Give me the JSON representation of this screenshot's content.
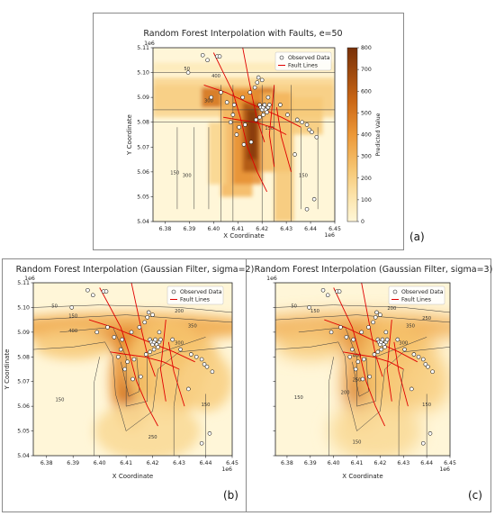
{
  "figure": {
    "panels": [
      {
        "id": "a",
        "letter": "(a)"
      },
      {
        "id": "b",
        "letter": "(b)"
      },
      {
        "id": "c",
        "letter": "(c)"
      }
    ]
  },
  "chart_data": [
    {
      "type": "heatmap",
      "title": "Random Forest Interpolation with Faults, e=50",
      "xlabel": "X Coordinate",
      "ylabel": "Y Coordinate",
      "x_offset_label": "1e6",
      "y_offset_label": "1e6",
      "xlim": [
        6.375,
        6.45
      ],
      "ylim": [
        5.04,
        5.11
      ],
      "xticks": [
        "6.38",
        "6.39",
        "6.40",
        "6.41",
        "6.42",
        "6.43",
        "6.44",
        "6.45"
      ],
      "yticks": [
        "5.04",
        "5.05",
        "5.06",
        "5.07",
        "5.08",
        "5.09",
        "5.10",
        "5.11"
      ],
      "colorbar": {
        "label": "Predicted Value",
        "ticks": [
          "0",
          "100",
          "200",
          "300",
          "400",
          "500",
          "600",
          "700",
          "800"
        ],
        "range": [
          0,
          800
        ]
      },
      "legend": {
        "position": "top-right",
        "entries": [
          "Observed Data",
          "Fault Lines"
        ]
      },
      "contour_labels": [
        "50",
        "150",
        "400",
        "300",
        "150",
        "300",
        "150"
      ],
      "observed_points": [
        [
          6.3895,
          5.1
        ],
        [
          6.3955,
          5.107
        ],
        [
          6.3975,
          5.105
        ],
        [
          6.4015,
          5.1065
        ],
        [
          6.4025,
          5.1065
        ],
        [
          6.399,
          5.09
        ],
        [
          6.403,
          5.092
        ],
        [
          6.4055,
          5.088
        ],
        [
          6.4085,
          5.087
        ],
        [
          6.412,
          5.09
        ],
        [
          6.415,
          5.092
        ],
        [
          6.417,
          5.094
        ],
        [
          6.418,
          5.096
        ],
        [
          6.4185,
          5.098
        ],
        [
          6.42,
          5.097
        ],
        [
          6.419,
          5.087
        ],
        [
          6.4195,
          5.086
        ],
        [
          6.42,
          5.085
        ],
        [
          6.4205,
          5.086
        ],
        [
          6.421,
          5.087
        ],
        [
          6.4215,
          5.085
        ],
        [
          6.422,
          5.084
        ],
        [
          6.4225,
          5.086
        ],
        [
          6.423,
          5.087
        ],
        [
          6.4205,
          5.083
        ],
        [
          6.419,
          5.082
        ],
        [
          6.4175,
          5.081
        ],
        [
          6.413,
          5.079
        ],
        [
          6.4105,
          5.078
        ],
        [
          6.4095,
          5.075
        ],
        [
          6.408,
          5.083
        ],
        [
          6.407,
          5.08
        ],
        [
          6.4125,
          5.071
        ],
        [
          6.4155,
          5.072
        ],
        [
          6.4305,
          5.083
        ],
        [
          6.4345,
          5.081
        ],
        [
          6.4365,
          5.08
        ],
        [
          6.4385,
          5.079
        ],
        [
          6.4395,
          5.077
        ],
        [
          6.4405,
          5.076
        ],
        [
          6.4425,
          5.074
        ],
        [
          6.4335,
          5.067
        ],
        [
          6.4385,
          5.045
        ],
        [
          6.4415,
          5.049
        ],
        [
          6.4275,
          5.087
        ],
        [
          6.4225,
          5.09
        ]
      ],
      "fault_lines": [
        [
          [
            6.4,
            5.108
          ],
          [
            6.404,
            5.1
          ],
          [
            6.408,
            5.092
          ],
          [
            6.411,
            5.082
          ],
          [
            6.414,
            5.07
          ],
          [
            6.418,
            5.06
          ],
          [
            6.422,
            5.052
          ]
        ],
        [
          [
            6.412,
            5.11
          ],
          [
            6.414,
            5.1
          ],
          [
            6.416,
            5.09
          ],
          [
            6.418,
            5.081
          ],
          [
            6.421,
            5.072
          ]
        ],
        [
          [
            6.396,
            5.095
          ],
          [
            6.405,
            5.092
          ],
          [
            6.414,
            5.088
          ],
          [
            6.421,
            5.085
          ],
          [
            6.428,
            5.082
          ],
          [
            6.436,
            5.078
          ]
        ],
        [
          [
            6.404,
            5.082
          ],
          [
            6.41,
            5.081
          ],
          [
            6.417,
            5.08
          ],
          [
            6.424,
            5.078
          ],
          [
            6.43,
            5.075
          ]
        ],
        [
          [
            6.425,
            5.095
          ],
          [
            6.424,
            5.085
          ],
          [
            6.423,
            5.075
          ],
          [
            6.425,
            5.062
          ]
        ],
        [
          [
            6.426,
            5.086
          ],
          [
            6.428,
            5.074
          ],
          [
            6.432,
            5.06
          ]
        ]
      ]
    },
    {
      "type": "heatmap",
      "title": "Random Forest Interpolation (Gaussian Filter, sigma=2)",
      "xlabel": "X Coordinate",
      "ylabel": "Y Coordinate",
      "x_offset_label": "1e6",
      "y_offset_label": "1e6",
      "xlim": [
        6.375,
        6.45
      ],
      "ylim": [
        5.04,
        5.11
      ],
      "xticks": [
        "6.38",
        "6.39",
        "6.40",
        "6.41",
        "6.42",
        "6.43",
        "6.44",
        "6.45"
      ],
      "yticks": [
        "5.04",
        "5.05",
        "5.06",
        "5.07",
        "5.08",
        "5.09",
        "5.10",
        "5.11"
      ],
      "legend": {
        "position": "top-right",
        "entries": [
          "Observed Data",
          "Fault Lines"
        ]
      },
      "contour_labels": [
        "50",
        "150",
        "200",
        "350",
        "400",
        "300",
        "150",
        "250",
        "150"
      ],
      "observed_points": [
        [
          6.3895,
          5.1
        ],
        [
          6.3955,
          5.107
        ],
        [
          6.3975,
          5.105
        ],
        [
          6.4015,
          5.1065
        ],
        [
          6.4025,
          5.1065
        ],
        [
          6.399,
          5.09
        ],
        [
          6.403,
          5.092
        ],
        [
          6.4055,
          5.088
        ],
        [
          6.4085,
          5.087
        ],
        [
          6.412,
          5.09
        ],
        [
          6.415,
          5.092
        ],
        [
          6.417,
          5.094
        ],
        [
          6.418,
          5.096
        ],
        [
          6.4185,
          5.098
        ],
        [
          6.42,
          5.097
        ],
        [
          6.419,
          5.087
        ],
        [
          6.4195,
          5.086
        ],
        [
          6.42,
          5.085
        ],
        [
          6.4205,
          5.086
        ],
        [
          6.421,
          5.087
        ],
        [
          6.4215,
          5.085
        ],
        [
          6.422,
          5.084
        ],
        [
          6.4225,
          5.086
        ],
        [
          6.423,
          5.087
        ],
        [
          6.4205,
          5.083
        ],
        [
          6.419,
          5.082
        ],
        [
          6.4175,
          5.081
        ],
        [
          6.413,
          5.079
        ],
        [
          6.4105,
          5.078
        ],
        [
          6.4095,
          5.075
        ],
        [
          6.408,
          5.083
        ],
        [
          6.407,
          5.08
        ],
        [
          6.4125,
          5.071
        ],
        [
          6.4155,
          5.072
        ],
        [
          6.4305,
          5.083
        ],
        [
          6.4345,
          5.081
        ],
        [
          6.4365,
          5.08
        ],
        [
          6.4385,
          5.079
        ],
        [
          6.4395,
          5.077
        ],
        [
          6.4405,
          5.076
        ],
        [
          6.4425,
          5.074
        ],
        [
          6.4335,
          5.067
        ],
        [
          6.4385,
          5.045
        ],
        [
          6.4415,
          5.049
        ],
        [
          6.4275,
          5.087
        ],
        [
          6.4225,
          5.09
        ]
      ],
      "fault_lines": [
        [
          [
            6.4,
            5.108
          ],
          [
            6.404,
            5.1
          ],
          [
            6.408,
            5.092
          ],
          [
            6.411,
            5.082
          ],
          [
            6.414,
            5.07
          ],
          [
            6.418,
            5.06
          ],
          [
            6.422,
            5.052
          ]
        ],
        [
          [
            6.412,
            5.11
          ],
          [
            6.414,
            5.1
          ],
          [
            6.416,
            5.09
          ],
          [
            6.418,
            5.081
          ],
          [
            6.421,
            5.072
          ]
        ],
        [
          [
            6.396,
            5.095
          ],
          [
            6.405,
            5.092
          ],
          [
            6.414,
            5.088
          ],
          [
            6.421,
            5.085
          ],
          [
            6.428,
            5.082
          ],
          [
            6.436,
            5.078
          ]
        ],
        [
          [
            6.404,
            5.082
          ],
          [
            6.41,
            5.081
          ],
          [
            6.417,
            5.08
          ],
          [
            6.424,
            5.078
          ],
          [
            6.43,
            5.075
          ]
        ],
        [
          [
            6.425,
            5.095
          ],
          [
            6.424,
            5.085
          ],
          [
            6.423,
            5.075
          ],
          [
            6.425,
            5.062
          ]
        ],
        [
          [
            6.426,
            5.086
          ],
          [
            6.428,
            5.074
          ],
          [
            6.432,
            5.06
          ]
        ]
      ]
    },
    {
      "type": "heatmap",
      "title": "Random Forest Interpolation (Gaussian Filter, sigma=3)",
      "xlabel": "X Coordinate",
      "ylabel": "",
      "x_offset_label": "1e6",
      "y_offset_label": "1e6",
      "xlim": [
        6.375,
        6.45
      ],
      "ylim": [
        5.04,
        5.11
      ],
      "xticks": [
        "6.38",
        "6.39",
        "6.40",
        "6.41",
        "6.42",
        "6.43",
        "6.44",
        "6.45"
      ],
      "yticks": [],
      "legend": {
        "position": "top-right",
        "entries": [
          "Observed Data",
          "Fault Lines"
        ]
      },
      "contour_labels": [
        "50",
        "150",
        "200",
        "250",
        "400",
        "250",
        "350",
        "300",
        "200",
        "150",
        "150",
        "150"
      ],
      "observed_points": [
        [
          6.3895,
          5.1
        ],
        [
          6.3955,
          5.107
        ],
        [
          6.3975,
          5.105
        ],
        [
          6.4015,
          5.1065
        ],
        [
          6.4025,
          5.1065
        ],
        [
          6.399,
          5.09
        ],
        [
          6.403,
          5.092
        ],
        [
          6.4055,
          5.088
        ],
        [
          6.4085,
          5.087
        ],
        [
          6.412,
          5.09
        ],
        [
          6.415,
          5.092
        ],
        [
          6.417,
          5.094
        ],
        [
          6.418,
          5.096
        ],
        [
          6.4185,
          5.098
        ],
        [
          6.42,
          5.097
        ],
        [
          6.419,
          5.087
        ],
        [
          6.4195,
          5.086
        ],
        [
          6.42,
          5.085
        ],
        [
          6.4205,
          5.086
        ],
        [
          6.421,
          5.087
        ],
        [
          6.4215,
          5.085
        ],
        [
          6.422,
          5.084
        ],
        [
          6.4225,
          5.086
        ],
        [
          6.423,
          5.087
        ],
        [
          6.4205,
          5.083
        ],
        [
          6.419,
          5.082
        ],
        [
          6.4175,
          5.081
        ],
        [
          6.413,
          5.079
        ],
        [
          6.4105,
          5.078
        ],
        [
          6.4095,
          5.075
        ],
        [
          6.408,
          5.083
        ],
        [
          6.407,
          5.08
        ],
        [
          6.4125,
          5.071
        ],
        [
          6.4155,
          5.072
        ],
        [
          6.4305,
          5.083
        ],
        [
          6.4345,
          5.081
        ],
        [
          6.4365,
          5.08
        ],
        [
          6.4385,
          5.079
        ],
        [
          6.4395,
          5.077
        ],
        [
          6.4405,
          5.076
        ],
        [
          6.4425,
          5.074
        ],
        [
          6.4335,
          5.067
        ],
        [
          6.4385,
          5.045
        ],
        [
          6.4415,
          5.049
        ],
        [
          6.4275,
          5.087
        ],
        [
          6.4225,
          5.09
        ]
      ],
      "fault_lines": [
        [
          [
            6.4,
            5.108
          ],
          [
            6.404,
            5.1
          ],
          [
            6.408,
            5.092
          ],
          [
            6.411,
            5.082
          ],
          [
            6.414,
            5.07
          ],
          [
            6.418,
            5.06
          ],
          [
            6.422,
            5.052
          ]
        ],
        [
          [
            6.412,
            5.11
          ],
          [
            6.414,
            5.1
          ],
          [
            6.416,
            5.09
          ],
          [
            6.418,
            5.081
          ],
          [
            6.421,
            5.072
          ]
        ],
        [
          [
            6.396,
            5.095
          ],
          [
            6.405,
            5.092
          ],
          [
            6.414,
            5.088
          ],
          [
            6.421,
            5.085
          ],
          [
            6.428,
            5.082
          ],
          [
            6.436,
            5.078
          ]
        ],
        [
          [
            6.404,
            5.082
          ],
          [
            6.41,
            5.081
          ],
          [
            6.417,
            5.08
          ],
          [
            6.424,
            5.078
          ],
          [
            6.43,
            5.075
          ]
        ],
        [
          [
            6.425,
            5.095
          ],
          [
            6.424,
            5.085
          ],
          [
            6.423,
            5.075
          ],
          [
            6.425,
            5.062
          ]
        ],
        [
          [
            6.426,
            5.086
          ],
          [
            6.428,
            5.074
          ],
          [
            6.432,
            5.06
          ]
        ]
      ]
    }
  ]
}
